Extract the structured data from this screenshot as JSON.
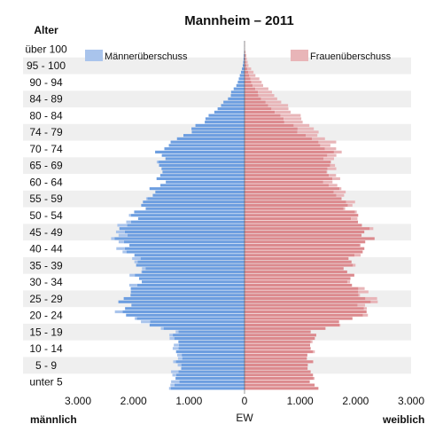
{
  "chart_data": {
    "type": "bar",
    "subtype": "population pyramid",
    "title": "Mannheim – 2011",
    "yaxis_title": "Alter",
    "xlabel": "EW",
    "left_label": "männlich",
    "right_label": "weiblich",
    "xlim": [
      -3000,
      3000
    ],
    "x_ticks": [
      -3000,
      -2000,
      -1000,
      0,
      1000,
      2000,
      3000
    ],
    "x_tick_labels": [
      "3.000",
      "2.000",
      "1.000",
      "0",
      "1.000",
      "2.000",
      "3.000"
    ],
    "age_group_labels": [
      "unter 5",
      "5 - 9",
      "10 - 14",
      "15 - 19",
      "20 - 24",
      "25 - 29",
      "30 - 34",
      "35 - 39",
      "40 - 44",
      "45 - 49",
      "50 - 54",
      "55 - 59",
      "60 - 64",
      "65 - 69",
      "70 - 74",
      "74 - 79",
      "80 - 84",
      "84 - 89",
      "90 - 94",
      "95 - 100",
      "über 100"
    ],
    "grid": false,
    "banded_background": true,
    "legend": [
      {
        "name": "Männerüberschuss",
        "color": "#a9c4ec",
        "placement": "top-left"
      },
      {
        "name": "Frauenüberschuss",
        "color": "#e8b5b8",
        "placement": "top-right"
      }
    ],
    "series": [
      {
        "name": "männlich",
        "side": "left",
        "color": "#6d9ee0",
        "excess_color": "#a9c4ec",
        "age_start": 0,
        "age_step": 5,
        "values": [
          1320,
          1210,
          1250,
          1320,
          2200,
          2150,
          1950,
          1900,
          2200,
          2350,
          1980,
          1750,
          1500,
          1520,
          1500,
          1000,
          620,
          300,
          120,
          30,
          2
        ]
      },
      {
        "name": "weiblich",
        "side": "right",
        "color": "#dc8a8e",
        "excess_color": "#e8b5b8",
        "age_start": 0,
        "age_step": 5,
        "values": [
          1250,
          1150,
          1200,
          1270,
          2150,
          2330,
          1920,
          1870,
          2150,
          2230,
          2000,
          1850,
          1650,
          1580,
          1700,
          1300,
          950,
          600,
          300,
          70,
          5
        ]
      }
    ],
    "colors": {
      "male": "#6d9ee0",
      "female": "#dc8a8e",
      "band": "#efefef"
    }
  }
}
